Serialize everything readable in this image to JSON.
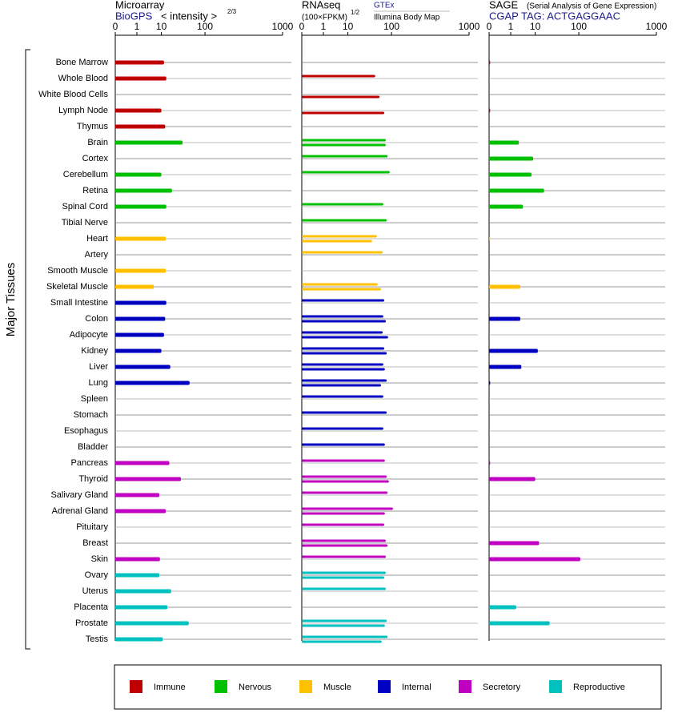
{
  "chart_data": {
    "type": "bar",
    "orientation": "horizontal",
    "y_axis_label": "Major Tissues",
    "groups": [
      {
        "name": "Immune",
        "color": "#c00000",
        "tissues": [
          "Bone Marrow",
          "Whole Blood",
          "White Blood Cells",
          "Lymph Node",
          "Thymus"
        ]
      },
      {
        "name": "Nervous",
        "color": "#00c000",
        "tissues": [
          "Brain",
          "Cortex",
          "Cerebellum",
          "Retina",
          "Spinal Cord",
          "Tibial Nerve"
        ]
      },
      {
        "name": "Muscle",
        "color": "#ffc000",
        "tissues": [
          "Heart",
          "Artery",
          "Smooth Muscle",
          "Skeletal Muscle"
        ]
      },
      {
        "name": "Internal",
        "color": "#0000c0",
        "tissues": [
          "Small Intestine",
          "Colon",
          "Adipocyte",
          "Kidney",
          "Liver",
          "Lung",
          "Spleen",
          "Stomach",
          "Esophagus",
          "Bladder"
        ]
      },
      {
        "name": "Secretory",
        "color": "#c000c0",
        "tissues": [
          "Pancreas",
          "Thyroid",
          "Salivary Gland",
          "Adrenal Gland",
          "Pituitary",
          "Breast",
          "Skin"
        ]
      },
      {
        "name": "Reproductive",
        "color": "#00c0c0",
        "tissues": [
          "Ovary",
          "Uterus",
          "Placenta",
          "Prostate",
          "Testis"
        ]
      }
    ],
    "panels": [
      {
        "title": "Microarray",
        "source": "BioGPS",
        "scale_label": "< intensity >",
        "scale_exponent": "2/3",
        "xlim": [
          0,
          1000
        ],
        "xticks": [
          0,
          1,
          10,
          100,
          1000
        ],
        "series": [
          {
            "values": [
              12,
              14,
              null,
              10,
              13,
              36,
              null,
              10,
              20,
              14,
              null,
              13.5,
              null,
              13.5,
              5.6,
              14,
              13,
              12,
              10,
              18,
              51,
              null,
              null,
              null,
              null,
              17,
              33,
              8.6,
              13.5,
              null,
              null,
              9,
              8.6,
              19,
              15,
              49,
              11
            ]
          }
        ]
      },
      {
        "title": "RNAseq",
        "scale_label": "(100×FPKM)",
        "scale_exponent": "1/2",
        "xlim": [
          0,
          1000
        ],
        "xticks": [
          0,
          1,
          10,
          100,
          1000
        ],
        "series": [
          {
            "name": "GTEx",
            "values": [
              null,
              49,
              null,
              null,
              null,
              79,
              85,
              93,
              null,
              71,
              82,
              53,
              69,
              null,
              55,
              74,
              71,
              69,
              74,
              71,
              82,
              71,
              82,
              71,
              76,
              76,
              82,
              85,
              106,
              74,
              79,
              79,
              79,
              79,
              null,
              82,
              85
            ]
          },
          {
            "name": "Illumina Body Map",
            "values": [
              null,
              null,
              60,
              74,
              null,
              79,
              null,
              null,
              null,
              null,
              null,
              42,
              null,
              null,
              64,
              null,
              79,
              87,
              82,
              76,
              64,
              null,
              null,
              null,
              null,
              null,
              90,
              null,
              76,
              null,
              85,
              null,
              74,
              null,
              null,
              76,
              66
            ]
          }
        ]
      },
      {
        "title": "SAGE",
        "subtitle": "(Serial Analysis of Gene Expression)",
        "source": "CGAP TAG: ACTGAGGAAC",
        "xlim": [
          0,
          1000
        ],
        "xticks": [
          0,
          1,
          10,
          100,
          1000
        ],
        "series": [
          {
            "values": [
              0.005,
              null,
              null,
              0.005,
              null,
              2.5,
              8.6,
              7.6,
              18,
              3.7,
              null,
              0.005,
              null,
              null,
              2.9,
              null,
              2.9,
              null,
              12,
              3.2,
              0.005,
              null,
              null,
              null,
              null,
              0.005,
              10,
              null,
              null,
              null,
              13,
              106,
              null,
              null,
              1.9,
              25,
              null
            ]
          }
        ]
      }
    ]
  }
}
